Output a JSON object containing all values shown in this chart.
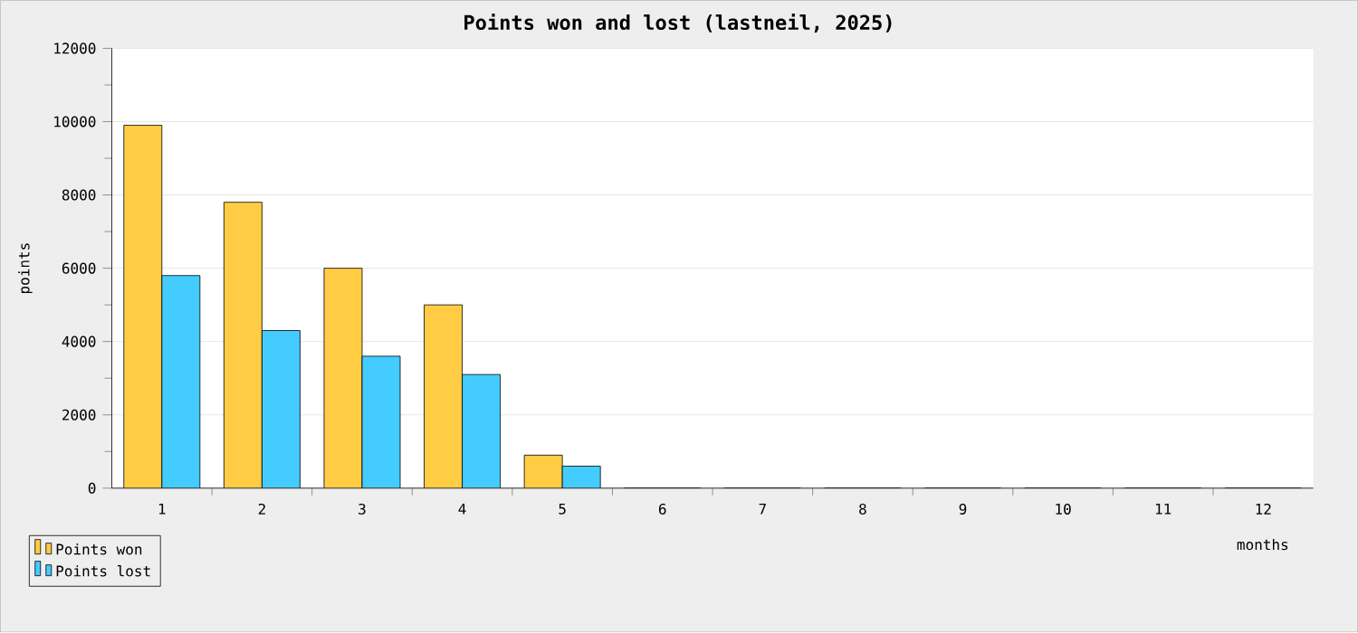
{
  "chart_data": {
    "type": "bar",
    "title": "Points won and lost (lastneil, 2025)",
    "xlabel": "months",
    "ylabel": "points",
    "categories": [
      "1",
      "2",
      "3",
      "4",
      "5",
      "6",
      "7",
      "8",
      "9",
      "10",
      "11",
      "12"
    ],
    "series": [
      {
        "name": "Points won",
        "color": "#ffcc44",
        "values": [
          9900,
          7800,
          6000,
          5000,
          900,
          0,
          0,
          0,
          0,
          0,
          0,
          0
        ]
      },
      {
        "name": "Points lost",
        "color": "#44ccff",
        "values": [
          5800,
          4300,
          3600,
          3100,
          600,
          0,
          0,
          0,
          0,
          0,
          0,
          0
        ]
      }
    ],
    "ylim": [
      0,
      12000
    ],
    "yticks": [
      0,
      2000,
      4000,
      6000,
      8000,
      10000,
      12000
    ],
    "grid": "y",
    "legend": "bottom left"
  }
}
